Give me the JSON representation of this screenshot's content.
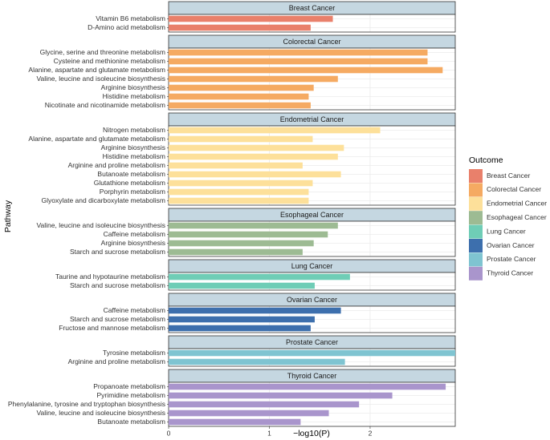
{
  "chart_data": {
    "type": "bar",
    "x_label": "−log10(P)",
    "y_label": "Pathway",
    "legend_title": "Outcome",
    "xlim": [
      0,
      2.845
    ],
    "xticks": [
      0,
      1,
      2
    ],
    "grid": true,
    "series": [
      {
        "name": "Breast Cancer",
        "color": "#e9806b",
        "categories": [
          "Vitamin B6 metabolism",
          "D-Amino acid metabolism"
        ],
        "values": [
          1.63,
          1.41
        ]
      },
      {
        "name": "Colorectal Cancer",
        "color": "#f5aa62",
        "categories": [
          "Glycine, serine and threonine metabolism",
          "Cysteine and methionine metabolism",
          "Alanine, aspartate and glutamate metabolism",
          "Valine, leucine and isoleucine biosynthesis",
          "Arginine biosynthesis",
          "Histidine metabolism",
          "Nicotinate and nicotinamide metabolism"
        ],
        "values": [
          2.57,
          2.57,
          2.72,
          1.68,
          1.44,
          1.39,
          1.41
        ]
      },
      {
        "name": "Endometrial Cancer",
        "color": "#fde09a",
        "categories": [
          "Nitrogen metabolism",
          "Alanine, aspartate and glutamate metabolism",
          "Arginine biosynthesis",
          "Histidine metabolism",
          "Arginine and proline metabolism",
          "Butanoate metabolism",
          "Glutathione metabolism",
          "Porphyrin metabolism",
          "Glyoxylate and dicarboxylate metabolism"
        ],
        "values": [
          2.1,
          1.43,
          1.74,
          1.68,
          1.33,
          1.71,
          1.43,
          1.39,
          1.39
        ]
      },
      {
        "name": "Esophageal Cancer",
        "color": "#9dbb93",
        "categories": [
          "Valine, leucine and isoleucine biosynthesis",
          "Caffeine metabolism",
          "Arginine biosynthesis",
          "Starch and sucrose metabolism"
        ],
        "values": [
          1.68,
          1.58,
          1.44,
          1.33
        ]
      },
      {
        "name": "Lung Cancer",
        "color": "#6fcdb6",
        "categories": [
          "Taurine and hypotaurine metabolism",
          "Starch and sucrose metabolism"
        ],
        "values": [
          1.8,
          1.45
        ]
      },
      {
        "name": "Ovarian Cancer",
        "color": "#3d6fad",
        "categories": [
          "Caffeine metabolism",
          "Starch and sucrose metabolism",
          "Fructose and mannose metabolism"
        ],
        "values": [
          1.71,
          1.45,
          1.41
        ]
      },
      {
        "name": "Prostate Cancer",
        "color": "#7fc4d1",
        "categories": [
          "Tyrosine metabolism",
          "Arginine and proline metabolism"
        ],
        "values": [
          2.85,
          1.75
        ]
      },
      {
        "name": "Thyroid Cancer",
        "color": "#a995cc",
        "categories": [
          "Propanoate metabolism",
          "Pyrimidine metabolism",
          "Phenylalanine, tyrosine and tryptophan biosynthesis",
          "Valine, leucine and isoleucine biosynthesis",
          "Butanoate metabolism"
        ],
        "values": [
          2.75,
          2.22,
          1.89,
          1.59,
          1.31
        ]
      }
    ]
  }
}
